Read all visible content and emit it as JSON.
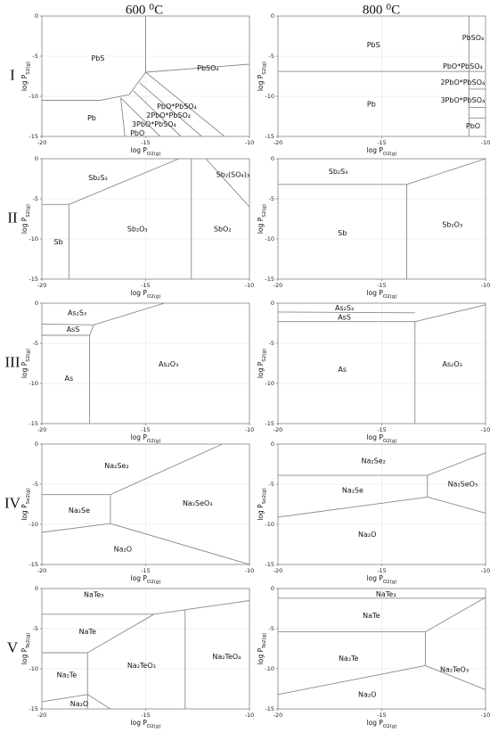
{
  "columns": [
    "600 ⁰C",
    "800 ⁰C"
  ],
  "rows": [
    "I",
    "II",
    "III",
    "IV",
    "V"
  ],
  "chart_data": [
    {
      "type": "phase_diagram",
      "xlabel": {
        "text": "log P",
        "sub": "O2(g)"
      },
      "ylabel": {
        "text": "log P",
        "sub": "S2(g)"
      },
      "xlim": [
        -20,
        -10
      ],
      "ylim": [
        -15,
        0
      ],
      "xticks": [
        -20,
        -15,
        -10
      ],
      "yticks": [
        0,
        -5,
        -10,
        -15
      ],
      "grid": true,
      "boundaries": [
        {
          "x": [
            -15,
            -15
          ],
          "y": [
            0,
            -7
          ]
        },
        {
          "x": [
            -15,
            -10
          ],
          "y": [
            -7,
            -6
          ]
        },
        {
          "x": [
            -20,
            -17.2
          ],
          "y": [
            -10.5,
            -10.5
          ]
        },
        {
          "x": [
            -17.2,
            -15.8,
            -15
          ],
          "y": [
            -10.5,
            -9.8,
            -7
          ]
        },
        {
          "x": [
            -15,
            -11.2
          ],
          "y": [
            -7,
            -15
          ]
        },
        {
          "x": [
            -15.3,
            -12.3
          ],
          "y": [
            -8.3,
            -15
          ]
        },
        {
          "x": [
            -15.6,
            -13.3
          ],
          "y": [
            -9.3,
            -15
          ]
        },
        {
          "x": [
            -16.2,
            -14.3
          ],
          "y": [
            -10.2,
            -15
          ]
        },
        {
          "x": [
            -16.2,
            -16
          ],
          "y": [
            -10.2,
            -15
          ]
        }
      ],
      "regions": [
        {
          "label": "PbS",
          "x": -17.3,
          "y": -5.3
        },
        {
          "label": "PbSO₄",
          "x": -12,
          "y": -6.5
        },
        {
          "label": "PbO*PbSO₄",
          "x": -13.5,
          "y": -11.3
        },
        {
          "label": "2PbO*PbSO₄",
          "x": -13.9,
          "y": -12.4
        },
        {
          "label": "3PbO*PbSO₄",
          "x": -14.6,
          "y": -13.5
        },
        {
          "label": "PbO",
          "x": -15.4,
          "y": -14.6
        },
        {
          "label": "Pb",
          "x": -17.6,
          "y": -12.7
        }
      ]
    },
    {
      "type": "phase_diagram",
      "xlabel": {
        "text": "log P",
        "sub": "O2(g)"
      },
      "ylabel": {
        "text": "log P",
        "sub": "S2(g)"
      },
      "xlim": [
        -20,
        -10
      ],
      "ylim": [
        -15,
        0
      ],
      "xticks": [
        -20,
        -15,
        -10
      ],
      "yticks": [
        0,
        -5,
        -10,
        -15
      ],
      "grid": true,
      "boundaries": [
        {
          "x": [
            -20,
            -10
          ],
          "y": [
            -6.9,
            -6.9
          ]
        },
        {
          "x": [
            -10.8,
            -10.8
          ],
          "y": [
            0,
            -15
          ]
        },
        {
          "x": [
            -10.8,
            -10
          ],
          "y": [
            -9.1,
            -9.1
          ]
        },
        {
          "x": [
            -10.8,
            -10
          ],
          "y": [
            -11.4,
            -11.4
          ]
        },
        {
          "x": [
            -10.8,
            -10
          ],
          "y": [
            -12.7,
            -12.7
          ]
        }
      ],
      "regions": [
        {
          "label": "PbS",
          "x": -15.4,
          "y": -3.6
        },
        {
          "label": "Pb",
          "x": -15.5,
          "y": -11
        },
        {
          "label": "PbSO₄",
          "x": -10.6,
          "y": -2.7
        },
        {
          "label": "PbO*PbSO₄",
          "x": -11.1,
          "y": -6.3
        },
        {
          "label": "2PbO*PbSO₄",
          "x": -11.1,
          "y": -8.3
        },
        {
          "label": "3PbO*PbSO₄",
          "x": -11.1,
          "y": -10.5
        },
        {
          "label": "PbO",
          "x": -10.6,
          "y": -13.7
        }
      ]
    },
    {
      "type": "phase_diagram",
      "xlabel": {
        "text": "log P",
        "sub": "O2(g)"
      },
      "ylabel": {
        "text": "log P",
        "sub": "S2(g)"
      },
      "xlim": [
        -20,
        -10
      ],
      "ylim": [
        -15,
        0
      ],
      "xticks": [
        -20,
        -15,
        -10
      ],
      "yticks": [
        0,
        -5,
        -10,
        -15
      ],
      "grid": true,
      "boundaries": [
        {
          "x": [
            -20,
            -18.7
          ],
          "y": [
            -5.7,
            -5.7
          ]
        },
        {
          "x": [
            -18.7,
            -13.4
          ],
          "y": [
            -5.7,
            0
          ]
        },
        {
          "x": [
            -18.7,
            -18.7
          ],
          "y": [
            -5.7,
            -15
          ]
        },
        {
          "x": [
            -12.8,
            -12.8
          ],
          "y": [
            0,
            -15
          ]
        },
        {
          "x": [
            -12.1,
            -10
          ],
          "y": [
            0,
            -6
          ]
        }
      ],
      "regions": [
        {
          "label": "Sb₂S₃",
          "x": -17.3,
          "y": -2.4
        },
        {
          "label": "Sb",
          "x": -19.2,
          "y": -10.4
        },
        {
          "label": "Sb₂O₃",
          "x": -15.4,
          "y": -8.8
        },
        {
          "label": "SbO₂",
          "x": -11.3,
          "y": -8.8
        },
        {
          "label": "Sb₂(SO₄)₃",
          "x": -10.8,
          "y": -2
        }
      ]
    },
    {
      "type": "phase_diagram",
      "xlabel": {
        "text": "log P",
        "sub": "O2(g)"
      },
      "ylabel": {
        "text": "log P",
        "sub": "S2(g)"
      },
      "xlim": [
        -20,
        -10
      ],
      "ylim": [
        -15,
        0
      ],
      "xticks": [
        -20,
        -15,
        -10
      ],
      "yticks": [
        0,
        -5,
        -10,
        -15
      ],
      "grid": true,
      "boundaries": [
        {
          "x": [
            -20,
            -13.8
          ],
          "y": [
            -3.2,
            -3.2
          ]
        },
        {
          "x": [
            -13.8,
            -10
          ],
          "y": [
            -3.2,
            0
          ]
        },
        {
          "x": [
            -13.8,
            -13.8
          ],
          "y": [
            -3.2,
            -15
          ]
        }
      ],
      "regions": [
        {
          "label": "Sb₂S₃",
          "x": -17.1,
          "y": -1.6
        },
        {
          "label": "Sb",
          "x": -16.9,
          "y": -9.3
        },
        {
          "label": "Sb₂O₃",
          "x": -11.6,
          "y": -8.2
        }
      ]
    },
    {
      "type": "phase_diagram",
      "xlabel": {
        "text": "log P",
        "sub": "O2(g)"
      },
      "ylabel": {
        "text": "log P",
        "sub": "S2(g)"
      },
      "xlim": [
        -20,
        -10
      ],
      "ylim": [
        -15,
        0
      ],
      "xticks": [
        -20,
        -15,
        -10
      ],
      "yticks": [
        0,
        -5,
        -10,
        -15
      ],
      "grid": true,
      "boundaries": [
        {
          "x": [
            -20,
            -17.5
          ],
          "y": [
            -2.6,
            -2.7
          ]
        },
        {
          "x": [
            -20,
            -17.7
          ],
          "y": [
            -4,
            -4
          ]
        },
        {
          "x": [
            -17.7,
            -17.7,
            -17.5,
            -14.1
          ],
          "y": [
            -15,
            -4,
            -2.7,
            0
          ]
        }
      ],
      "regions": [
        {
          "label": "As₂S₃",
          "x": -18.3,
          "y": -1.2
        },
        {
          "label": "AsS",
          "x": -18.5,
          "y": -3.3
        },
        {
          "label": "As",
          "x": -18.7,
          "y": -9.4
        },
        {
          "label": "As₂O₃",
          "x": -13.9,
          "y": -7.6
        }
      ]
    },
    {
      "type": "phase_diagram",
      "xlabel": {
        "text": "log P",
        "sub": "O2(g)"
      },
      "ylabel": {
        "text": "log P",
        "sub": "S2(g)"
      },
      "xlim": [
        -20,
        -10
      ],
      "ylim": [
        -15,
        0
      ],
      "xticks": [
        -20,
        -15,
        -10
      ],
      "yticks": [
        0,
        -5,
        -10,
        -15
      ],
      "grid": true,
      "boundaries": [
        {
          "x": [
            -20,
            -13.4
          ],
          "y": [
            -1.1,
            -1.2
          ]
        },
        {
          "x": [
            -20,
            -13.4
          ],
          "y": [
            -2.3,
            -2.3
          ]
        },
        {
          "x": [
            -13.4,
            -13.4
          ],
          "y": [
            -2.3,
            -15
          ]
        },
        {
          "x": [
            -13.4,
            -10
          ],
          "y": [
            -2.3,
            -0.2
          ]
        }
      ],
      "regions": [
        {
          "label": "As₂S₃",
          "x": -16.8,
          "y": -0.6
        },
        {
          "label": "AsS",
          "x": -16.8,
          "y": -1.8
        },
        {
          "label": "As",
          "x": -16.9,
          "y": -8.3
        },
        {
          "label": "As₂O₃",
          "x": -11.6,
          "y": -7.6
        }
      ]
    },
    {
      "type": "phase_diagram",
      "xlabel": {
        "text": "log P",
        "sub": "O2(g)"
      },
      "ylabel": {
        "text": "log P",
        "sub": "Se2(g)"
      },
      "xlim": [
        -20,
        -10
      ],
      "ylim": [
        -15,
        0
      ],
      "xticks": [
        -20,
        -15,
        -10
      ],
      "yticks": [
        0,
        -5,
        -10,
        -15
      ],
      "grid": true,
      "boundaries": [
        {
          "x": [
            -20,
            -16.7
          ],
          "y": [
            -6.3,
            -6.3
          ]
        },
        {
          "x": [
            -16.7,
            -16.7
          ],
          "y": [
            -6.3,
            -9.9
          ]
        },
        {
          "x": [
            -16.7,
            -11.3
          ],
          "y": [
            -6.3,
            0
          ]
        },
        {
          "x": [
            -20,
            -16.7
          ],
          "y": [
            -11,
            -9.9
          ]
        },
        {
          "x": [
            -16.7,
            -10
          ],
          "y": [
            -9.9,
            -15
          ]
        }
      ],
      "regions": [
        {
          "label": "Na₂Se₂",
          "x": -16.4,
          "y": -2.7
        },
        {
          "label": "Na₂Se",
          "x": -18.2,
          "y": -8.3
        },
        {
          "label": "Na₂SeO₃",
          "x": -12.5,
          "y": -7.4
        },
        {
          "label": "Na₂O",
          "x": -16.1,
          "y": -13.1
        }
      ]
    },
    {
      "type": "phase_diagram",
      "xlabel": {
        "text": "log P",
        "sub": "O2(g)"
      },
      "ylabel": {
        "text": "log P",
        "sub": "Se2(g)"
      },
      "xlim": [
        -20,
        -10
      ],
      "ylim": [
        -15,
        0
      ],
      "xticks": [
        -20,
        -15,
        -10
      ],
      "yticks": [
        0,
        -5,
        -10,
        -15
      ],
      "grid": true,
      "boundaries": [
        {
          "x": [
            -20,
            -12.8
          ],
          "y": [
            -3.9,
            -3.9
          ]
        },
        {
          "x": [
            -12.8,
            -10
          ],
          "y": [
            -3.9,
            -1.1
          ]
        },
        {
          "x": [
            -12.8,
            -12.8
          ],
          "y": [
            -3.9,
            -6.6
          ]
        },
        {
          "x": [
            -12.8,
            -10
          ],
          "y": [
            -6.6,
            -8.6
          ]
        },
        {
          "x": [
            -20,
            -12.8
          ],
          "y": [
            -9.1,
            -6.6
          ]
        }
      ],
      "regions": [
        {
          "label": "Na₂Se₂",
          "x": -15.4,
          "y": -2.1
        },
        {
          "label": "Na₂Se",
          "x": -16.4,
          "y": -5.8
        },
        {
          "label": "Na₂SeO₃",
          "x": -11.1,
          "y": -5
        },
        {
          "label": "Na₂O",
          "x": -15.7,
          "y": -11.3
        }
      ]
    },
    {
      "type": "phase_diagram",
      "xlabel": {
        "text": "log P",
        "sub": "O2(g)"
      },
      "ylabel": {
        "text": "log P",
        "sub": "Te2(g)"
      },
      "xlim": [
        -20,
        -10
      ],
      "ylim": [
        -15,
        0
      ],
      "xticks": [
        -20,
        -15,
        -10
      ],
      "yticks": [
        0,
        -5,
        -10,
        -15
      ],
      "grid": true,
      "boundaries": [
        {
          "x": [
            -20,
            -14.6
          ],
          "y": [
            -3.2,
            -3.2
          ]
        },
        {
          "x": [
            -14.6,
            -10
          ],
          "y": [
            -3.2,
            -1.5
          ]
        },
        {
          "x": [
            -13.1,
            -13.1
          ],
          "y": [
            -2.7,
            -15
          ]
        },
        {
          "x": [
            -20,
            -17.8
          ],
          "y": [
            -8,
            -8
          ]
        },
        {
          "x": [
            -17.8,
            -17.8
          ],
          "y": [
            -8,
            -15
          ]
        },
        {
          "x": [
            -17.8,
            -14.6
          ],
          "y": [
            -8,
            -3.2
          ]
        },
        {
          "x": [
            -20,
            -17.8
          ],
          "y": [
            -14.1,
            -13.2
          ]
        },
        {
          "x": [
            -17.8,
            -16.7
          ],
          "y": [
            -13.2,
            -15
          ]
        }
      ],
      "regions": [
        {
          "label": "NaTe₃",
          "x": -17.5,
          "y": -0.8
        },
        {
          "label": "NaTe",
          "x": -17.8,
          "y": -5.4
        },
        {
          "label": "Na₂Te",
          "x": -18.8,
          "y": -10.8
        },
        {
          "label": "Na₂TeO₃",
          "x": -15.2,
          "y": -9.6
        },
        {
          "label": "Na₂TeO₄",
          "x": -11.1,
          "y": -8.5
        },
        {
          "label": "Na₂O",
          "x": -18.2,
          "y": -14.4
        }
      ]
    },
    {
      "type": "phase_diagram",
      "xlabel": {
        "text": "log P",
        "sub": "O2(g)"
      },
      "ylabel": {
        "text": "log P",
        "sub": "Te2(g)"
      },
      "xlim": [
        -20,
        -10
      ],
      "ylim": [
        -15,
        0
      ],
      "xticks": [
        -20,
        -15,
        -10
      ],
      "yticks": [
        0,
        -5,
        -10,
        -15
      ],
      "grid": true,
      "boundaries": [
        {
          "x": [
            -20,
            -10
          ],
          "y": [
            -1.2,
            -1.2
          ]
        },
        {
          "x": [
            -20,
            -12.9
          ],
          "y": [
            -5.4,
            -5.4
          ]
        },
        {
          "x": [
            -12.9,
            -10
          ],
          "y": [
            -5.4,
            -1.1
          ]
        },
        {
          "x": [
            -12.9,
            -12.9
          ],
          "y": [
            -5.4,
            -9.6
          ]
        },
        {
          "x": [
            -20,
            -12.9
          ],
          "y": [
            -13.2,
            -9.6
          ]
        },
        {
          "x": [
            -12.9,
            -10
          ],
          "y": [
            -9.6,
            -12.6
          ]
        }
      ],
      "regions": [
        {
          "label": "NaTe₃",
          "x": -14.8,
          "y": -0.7
        },
        {
          "label": "NaTe",
          "x": -15.5,
          "y": -3.4
        },
        {
          "label": "Na₂Te",
          "x": -16.6,
          "y": -8.7
        },
        {
          "label": "Na₂TeO₃",
          "x": -11.5,
          "y": -10.1
        },
        {
          "label": "Na₂O",
          "x": -15.7,
          "y": -13.2
        }
      ]
    }
  ]
}
